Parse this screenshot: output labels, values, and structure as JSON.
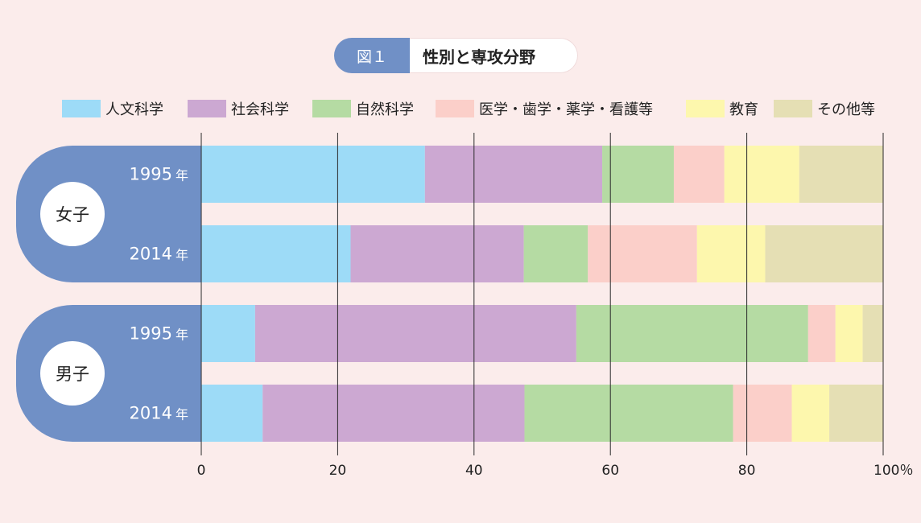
{
  "title": {
    "badge": "図１",
    "text": "性別と専攻分野"
  },
  "chart_data": {
    "type": "bar",
    "orientation": "horizontal",
    "stacked": true,
    "xlim": [
      0,
      100
    ],
    "xticks": [
      "0",
      "20",
      "40",
      "60",
      "80",
      "100％"
    ],
    "grid": true,
    "legend_position": "top",
    "series": [
      {
        "name": "人文科学",
        "color": "#9ddbf7"
      },
      {
        "name": "社会科学",
        "color": "#cca8d2"
      },
      {
        "name": "自然科学",
        "color": "#b5dba3"
      },
      {
        "name": "医学・歯学・薬学・看護等",
        "color": "#fbcfc9"
      },
      {
        "name": "教育",
        "color": "#fdf7ad"
      },
      {
        "name": "その他等",
        "color": "#e5dfb4"
      }
    ],
    "groups": [
      {
        "label": "女子",
        "rows": [
          {
            "year": "1995",
            "unit": "年",
            "values": [
              32.8,
              26.0,
              10.5,
              7.4,
              11.0,
              12.3
            ]
          },
          {
            "year": "2014",
            "unit": "年",
            "values": [
              21.9,
              25.4,
              9.4,
              16.0,
              10.0,
              17.3
            ]
          }
        ]
      },
      {
        "label": "男子",
        "rows": [
          {
            "year": "1995",
            "unit": "年",
            "values": [
              7.9,
              47.1,
              34.0,
              4.0,
              4.0,
              3.0
            ]
          },
          {
            "year": "2014",
            "unit": "年",
            "values": [
              9.0,
              38.4,
              30.6,
              8.6,
              5.5,
              7.9
            ]
          }
        ]
      }
    ]
  }
}
